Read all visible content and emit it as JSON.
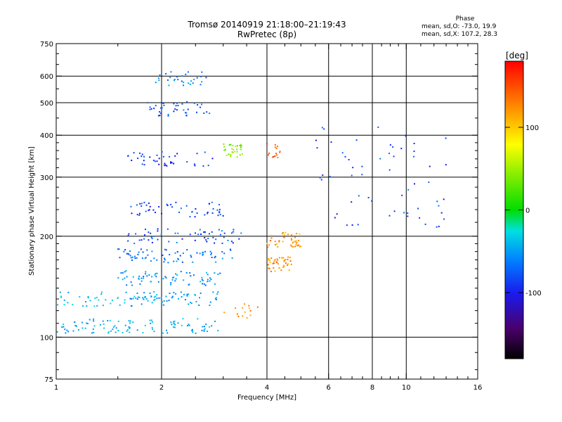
{
  "header": {
    "title_line1": "Tromsø 20140919 21:18:00–21:19:43",
    "title_line2": "RwPretec (8p)"
  },
  "phase_stats": {
    "heading": "Phase",
    "line_o": "mean, sd,O: -73.0, 19.9",
    "line_x": "mean, sd,X: 107.2, 28.3"
  },
  "colorbar": {
    "unit": "[deg]",
    "ticks": [
      {
        "value": 100,
        "label": "100"
      },
      {
        "value": 0,
        "label": "0"
      },
      {
        "value": -100,
        "label": "-100"
      }
    ],
    "range": [
      -180,
      180
    ]
  },
  "chart_data": {
    "type": "scatter",
    "title": "Tromsø 20140919 21:18:00–21:19:43",
    "subtitle": "RwPretec (8p)",
    "xlabel": "Frequency [MHz]",
    "ylabel": "Stationary phase Virtual Height [km]",
    "xscale": "log",
    "yscale": "log",
    "xlim": [
      1,
      16
    ],
    "ylim": [
      75,
      750
    ],
    "x_ticks": [
      1,
      2,
      4,
      6,
      8,
      10,
      16
    ],
    "x_tick_labels": [
      "1",
      "2",
      "4",
      "6",
      "8",
      "10",
      "16"
    ],
    "x_minor_ticks": [
      1.5,
      2.5,
      3,
      3.5,
      4.5,
      5,
      5.5,
      6.5,
      7,
      7.5,
      8.5,
      9,
      9.5,
      11,
      12,
      13,
      14,
      15
    ],
    "y_ticks": [
      75,
      100,
      200,
      300,
      400,
      500,
      600,
      750
    ],
    "y_tick_labels": [
      "75",
      "100",
      "200",
      "300",
      "400",
      "500",
      "600",
      "750"
    ],
    "y_minor_ticks": [
      80,
      90,
      110,
      120,
      130,
      140,
      150,
      160,
      170,
      180,
      190,
      220,
      240,
      260,
      280,
      320,
      340,
      360,
      380,
      450,
      550,
      650,
      700
    ],
    "vertical_gridlines_at": [
      2,
      4,
      6,
      8,
      10
    ],
    "horizontal_gridlines_at": [
      100,
      200,
      300,
      400,
      500,
      600
    ],
    "grid": true,
    "color_scale": "rainbow, phase in degrees",
    "echo_traces": [
      {
        "name": "low_frequency_base",
        "x_range": [
          1.0,
          2.9
        ],
        "y_approx": 108,
        "phase_deg": -60,
        "approx_points": 100
      },
      {
        "name": "lower_E_trace",
        "x_range": [
          1.0,
          2.0
        ],
        "y_approx": 130,
        "phase_deg": -55,
        "approx_points": 45
      },
      {
        "name": "mid_layer_1",
        "x_range": [
          1.6,
          2.9
        ],
        "y_approx": 130,
        "phase_deg": -70,
        "approx_points": 60
      },
      {
        "name": "mid_layer_2",
        "x_range": [
          1.5,
          3.0
        ],
        "y_approx": 150,
        "phase_deg": -75,
        "approx_points": 70
      },
      {
        "name": "mid_layer_3",
        "x_range": [
          1.5,
          3.2
        ],
        "y_approx": 175,
        "phase_deg": -85,
        "approx_points": 70
      },
      {
        "name": "mid_layer_4",
        "x_range": [
          1.6,
          3.4
        ],
        "y_approx": 200,
        "phase_deg": -95,
        "approx_points": 60
      },
      {
        "name": "upper_layer_1",
        "x_range": [
          1.6,
          3.0
        ],
        "y_approx": 240,
        "phase_deg": -100,
        "approx_points": 50
      },
      {
        "name": "upper_layer_2",
        "x_range": [
          1.6,
          2.8
        ],
        "y_approx": 340,
        "phase_deg": -110,
        "approx_points": 40
      },
      {
        "name": "upper_layer_3",
        "x_range": [
          1.8,
          2.8
        ],
        "y_approx": 480,
        "phase_deg": -95,
        "approx_points": 40
      },
      {
        "name": "upper_layer_4",
        "x_range": [
          1.9,
          2.7
        ],
        "y_approx": 590,
        "phase_deg": -80,
        "approx_points": 30
      },
      {
        "name": "x_mode_cluster_low",
        "x_range": [
          4.0,
          4.7
        ],
        "y_approx": 165,
        "phase_deg": 130,
        "approx_points": 45
      },
      {
        "name": "x_mode_cluster_mid",
        "x_range": [
          4.0,
          5.0
        ],
        "y_approx": 195,
        "phase_deg": 125,
        "approx_points": 45
      },
      {
        "name": "x_mode_cluster_high",
        "x_range": [
          4.0,
          4.5
        ],
        "y_approx": 360,
        "phase_deg": 150,
        "approx_points": 15
      },
      {
        "name": "green_patch",
        "x_range": [
          3.0,
          3.4
        ],
        "y_approx": 360,
        "phase_deg": 40,
        "approx_points": 30
      },
      {
        "name": "orange_patch_low",
        "x_range": [
          3.0,
          3.8
        ],
        "y_approx": 120,
        "phase_deg": 130,
        "approx_points": 15
      },
      {
        "name": "sparse_high_freq",
        "x_range": [
          5.5,
          13.0
        ],
        "y_approx": 300,
        "phase_deg": -100,
        "approx_points": 60
      }
    ]
  }
}
